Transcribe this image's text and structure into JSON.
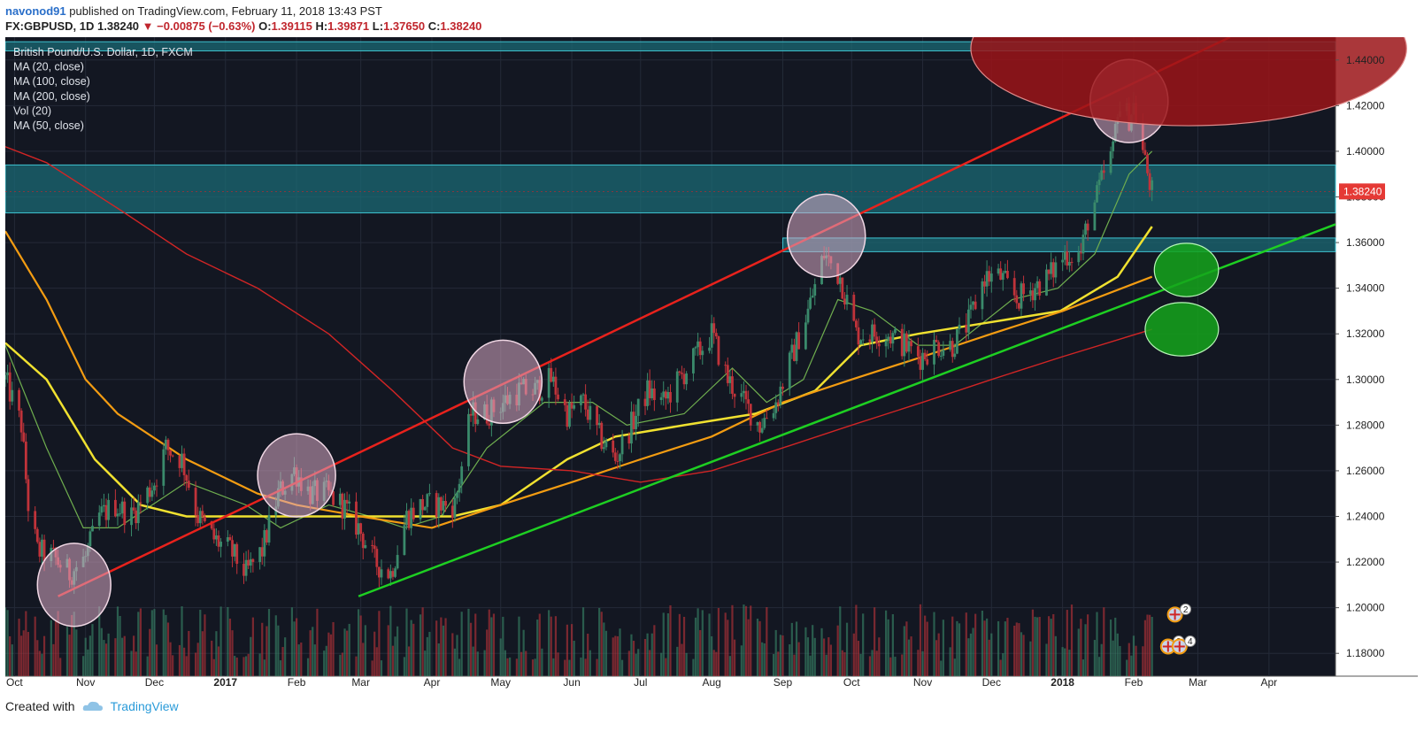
{
  "header": {
    "publisher": "navonod91",
    "published_text": "published on TradingView.com, February 11, 2018 13:43 PST",
    "symbol": "FX:GBPUSD, 1D",
    "last": "1.38240",
    "change": "−0.00875 (−0.63%)",
    "o_label": "O:",
    "o_value": "1.39115",
    "h_label": "H:",
    "h_value": "1.39871",
    "l_label": "L:",
    "l_value": "1.37650",
    "c_label": "C:",
    "c_value": "1.38240"
  },
  "legend": [
    "British Pound/U.S. Dollar, 1D, FXCM",
    "MA (20, close)",
    "MA (100, close)",
    "MA (200, close)",
    "Vol (20)",
    "MA (50, close)"
  ],
  "footer": {
    "created_with": "Created with",
    "brand": "TradingView"
  },
  "colors": {
    "background": "#131722",
    "bull": "#3a8a6b",
    "bear": "#c0333a",
    "ma20": "#6fae4f",
    "ma50": "#f0e130",
    "ma100": "#f39c12",
    "ma200": "#d02525",
    "zone": "#1b6a74",
    "trend_red": "#e8221c",
    "trend_green": "#1ecf22"
  },
  "chart_data": {
    "type": "candlestick",
    "title": "British Pound/U.S. Dollar, 1D, FXCM",
    "ylim": [
      1.17,
      1.45
    ],
    "xlim": [
      "2016-09-27",
      "2018-04-30"
    ],
    "y_ticks": [
      "1.18000",
      "1.20000",
      "1.22000",
      "1.24000",
      "1.26000",
      "1.28000",
      "1.30000",
      "1.32000",
      "1.34000",
      "1.36000",
      "1.38000",
      "1.40000",
      "1.42000",
      "1.44000"
    ],
    "y_tick_values": [
      1.18,
      1.2,
      1.22,
      1.24,
      1.26,
      1.28,
      1.3,
      1.32,
      1.34,
      1.36,
      1.38,
      1.4,
      1.42,
      1.44
    ],
    "x_ticks": [
      {
        "label": "Oct",
        "date": "2016-10-01"
      },
      {
        "label": "Nov",
        "date": "2016-11-01"
      },
      {
        "label": "Dec",
        "date": "2016-12-01"
      },
      {
        "label": "2017",
        "date": "2017-01-01"
      },
      {
        "label": "Feb",
        "date": "2017-02-01"
      },
      {
        "label": "Mar",
        "date": "2017-03-01"
      },
      {
        "label": "Apr",
        "date": "2017-04-01"
      },
      {
        "label": "May",
        "date": "2017-05-01"
      },
      {
        "label": "Jun",
        "date": "2017-06-01"
      },
      {
        "label": "Jul",
        "date": "2017-07-01"
      },
      {
        "label": "Aug",
        "date": "2017-08-01"
      },
      {
        "label": "Sep",
        "date": "2017-09-01"
      },
      {
        "label": "Oct",
        "date": "2017-10-01"
      },
      {
        "label": "Nov",
        "date": "2017-11-01"
      },
      {
        "label": "Dec",
        "date": "2017-12-01"
      },
      {
        "label": "2018",
        "date": "2018-01-01"
      },
      {
        "label": "Feb",
        "date": "2018-02-01"
      },
      {
        "label": "Mar",
        "date": "2018-03-01"
      },
      {
        "label": "Apr",
        "date": "2018-04-01"
      }
    ],
    "last_price": {
      "label": "1.38240",
      "value": 1.3824
    },
    "price_path": [
      [
        "2016-09-27",
        1.3
      ],
      [
        "2016-10-04",
        1.28
      ],
      [
        "2016-10-07",
        1.245
      ],
      [
        "2016-10-11",
        1.225
      ],
      [
        "2016-10-18",
        1.222
      ],
      [
        "2016-10-25",
        1.215
      ],
      [
        "2016-11-01",
        1.222
      ],
      [
        "2016-11-07",
        1.24
      ],
      [
        "2016-11-14",
        1.245
      ],
      [
        "2016-11-21",
        1.24
      ],
      [
        "2016-12-01",
        1.255
      ],
      [
        "2016-12-06",
        1.27
      ],
      [
        "2016-12-13",
        1.265
      ],
      [
        "2016-12-20",
        1.24
      ],
      [
        "2016-12-27",
        1.23
      ],
      [
        "2017-01-03",
        1.225
      ],
      [
        "2017-01-10",
        1.215
      ],
      [
        "2017-01-17",
        1.225
      ],
      [
        "2017-01-24",
        1.25
      ],
      [
        "2017-01-31",
        1.26
      ],
      [
        "2017-02-07",
        1.25
      ],
      [
        "2017-02-14",
        1.25
      ],
      [
        "2017-02-21",
        1.245
      ],
      [
        "2017-02-28",
        1.235
      ],
      [
        "2017-03-07",
        1.22
      ],
      [
        "2017-03-14",
        1.215
      ],
      [
        "2017-03-21",
        1.24
      ],
      [
        "2017-03-28",
        1.245
      ],
      [
        "2017-04-04",
        1.245
      ],
      [
        "2017-04-11",
        1.245
      ],
      [
        "2017-04-18",
        1.285
      ],
      [
        "2017-04-25",
        1.285
      ],
      [
        "2017-05-02",
        1.29
      ],
      [
        "2017-05-09",
        1.295
      ],
      [
        "2017-05-16",
        1.295
      ],
      [
        "2017-05-23",
        1.3
      ],
      [
        "2017-05-30",
        1.285
      ],
      [
        "2017-06-06",
        1.29
      ],
      [
        "2017-06-13",
        1.275
      ],
      [
        "2017-06-20",
        1.265
      ],
      [
        "2017-06-27",
        1.28
      ],
      [
        "2017-07-04",
        1.295
      ],
      [
        "2017-07-11",
        1.29
      ],
      [
        "2017-07-18",
        1.3
      ],
      [
        "2017-07-25",
        1.31
      ],
      [
        "2017-08-01",
        1.32
      ],
      [
        "2017-08-08",
        1.3
      ],
      [
        "2017-08-15",
        1.29
      ],
      [
        "2017-08-22",
        1.28
      ],
      [
        "2017-08-29",
        1.29
      ],
      [
        "2017-09-05",
        1.31
      ],
      [
        "2017-09-12",
        1.33
      ],
      [
        "2017-09-19",
        1.355
      ],
      [
        "2017-09-26",
        1.345
      ],
      [
        "2017-10-03",
        1.32
      ],
      [
        "2017-10-10",
        1.32
      ],
      [
        "2017-10-17",
        1.32
      ],
      [
        "2017-10-24",
        1.315
      ],
      [
        "2017-10-31",
        1.31
      ],
      [
        "2017-11-07",
        1.315
      ],
      [
        "2017-11-14",
        1.315
      ],
      [
        "2017-11-21",
        1.325
      ],
      [
        "2017-11-28",
        1.345
      ],
      [
        "2017-12-05",
        1.345
      ],
      [
        "2017-12-12",
        1.335
      ],
      [
        "2017-12-19",
        1.34
      ],
      [
        "2017-12-26",
        1.345
      ],
      [
        "2018-01-02",
        1.355
      ],
      [
        "2018-01-09",
        1.355
      ],
      [
        "2018-01-12",
        1.37
      ],
      [
        "2018-01-16",
        1.38
      ],
      [
        "2018-01-19",
        1.39
      ],
      [
        "2018-01-23",
        1.4
      ],
      [
        "2018-01-25",
        1.42
      ],
      [
        "2018-01-30",
        1.415
      ],
      [
        "2018-02-01",
        1.42
      ],
      [
        "2018-02-06",
        1.395
      ],
      [
        "2018-02-09",
        1.382
      ]
    ],
    "volume_level": [
      0.12,
      0.95
    ],
    "moving_averages": [
      {
        "name": "MA (20, close)",
        "points": [
          [
            "2016-09-27",
            1.315
          ],
          [
            "2016-10-15",
            1.27
          ],
          [
            "2016-10-31",
            1.235
          ],
          [
            "2016-11-15",
            1.235
          ],
          [
            "2016-12-15",
            1.255
          ],
          [
            "2017-01-10",
            1.245
          ],
          [
            "2017-01-25",
            1.235
          ],
          [
            "2017-02-15",
            1.245
          ],
          [
            "2017-03-05",
            1.24
          ],
          [
            "2017-03-20",
            1.235
          ],
          [
            "2017-04-05",
            1.24
          ],
          [
            "2017-04-25",
            1.27
          ],
          [
            "2017-05-20",
            1.29
          ],
          [
            "2017-06-10",
            1.29
          ],
          [
            "2017-06-25",
            1.28
          ],
          [
            "2017-07-20",
            1.285
          ],
          [
            "2017-08-10",
            1.305
          ],
          [
            "2017-08-25",
            1.29
          ],
          [
            "2017-09-10",
            1.3
          ],
          [
            "2017-09-25",
            1.335
          ],
          [
            "2017-10-10",
            1.33
          ],
          [
            "2017-10-30",
            1.315
          ],
          [
            "2017-11-15",
            1.315
          ],
          [
            "2017-12-10",
            1.335
          ],
          [
            "2017-12-30",
            1.34
          ],
          [
            "2018-01-15",
            1.355
          ],
          [
            "2018-01-30",
            1.39
          ],
          [
            "2018-02-09",
            1.4
          ]
        ]
      },
      {
        "name": "MA (50, close)",
        "points": [
          [
            "2016-09-27",
            1.316
          ],
          [
            "2016-10-15",
            1.3
          ],
          [
            "2016-11-05",
            1.265
          ],
          [
            "2016-11-25",
            1.245
          ],
          [
            "2016-12-15",
            1.24
          ],
          [
            "2017-01-15",
            1.24
          ],
          [
            "2017-02-15",
            1.24
          ],
          [
            "2017-03-15",
            1.24
          ],
          [
            "2017-04-10",
            1.24
          ],
          [
            "2017-05-01",
            1.245
          ],
          [
            "2017-05-30",
            1.265
          ],
          [
            "2017-06-20",
            1.275
          ],
          [
            "2017-07-20",
            1.28
          ],
          [
            "2017-08-20",
            1.285
          ],
          [
            "2017-09-15",
            1.295
          ],
          [
            "2017-10-05",
            1.315
          ],
          [
            "2017-10-30",
            1.32
          ],
          [
            "2017-11-30",
            1.325
          ],
          [
            "2017-12-31",
            1.33
          ],
          [
            "2018-01-25",
            1.345
          ],
          [
            "2018-02-09",
            1.367
          ]
        ]
      },
      {
        "name": "MA (100, close)",
        "points": [
          [
            "2016-09-27",
            1.365
          ],
          [
            "2016-10-15",
            1.335
          ],
          [
            "2016-11-01",
            1.3
          ],
          [
            "2016-11-15",
            1.285
          ],
          [
            "2016-12-15",
            1.265
          ],
          [
            "2017-01-15",
            1.25
          ],
          [
            "2017-02-01",
            1.245
          ],
          [
            "2017-03-01",
            1.24
          ],
          [
            "2017-04-01",
            1.235
          ],
          [
            "2017-05-01",
            1.245
          ],
          [
            "2017-06-01",
            1.255
          ],
          [
            "2017-07-01",
            1.265
          ],
          [
            "2017-08-01",
            1.275
          ],
          [
            "2017-09-01",
            1.29
          ],
          [
            "2017-10-01",
            1.3
          ],
          [
            "2017-11-01",
            1.31
          ],
          [
            "2017-12-01",
            1.32
          ],
          [
            "2018-01-01",
            1.33
          ],
          [
            "2018-02-09",
            1.345
          ]
        ]
      },
      {
        "name": "MA (200, close)",
        "points": [
          [
            "2016-09-27",
            1.402
          ],
          [
            "2016-10-15",
            1.395
          ],
          [
            "2016-11-15",
            1.375
          ],
          [
            "2016-12-15",
            1.355
          ],
          [
            "2017-01-15",
            1.34
          ],
          [
            "2017-02-15",
            1.32
          ],
          [
            "2017-03-15",
            1.295
          ],
          [
            "2017-04-10",
            1.27
          ],
          [
            "2017-05-01",
            1.262
          ],
          [
            "2017-06-01",
            1.26
          ],
          [
            "2017-07-01",
            1.255
          ],
          [
            "2017-08-01",
            1.26
          ],
          [
            "2017-09-01",
            1.27
          ],
          [
            "2017-10-01",
            1.28
          ],
          [
            "2017-11-01",
            1.29
          ],
          [
            "2017-12-01",
            1.3
          ],
          [
            "2018-01-01",
            1.31
          ],
          [
            "2018-02-09",
            1.322
          ]
        ]
      }
    ],
    "trendlines": [
      {
        "color": "red",
        "from": [
          "2016-10-20",
          1.205
        ],
        "to": [
          "2018-03-15",
          1.45
        ]
      },
      {
        "color": "green",
        "from": [
          "2017-02-28",
          1.205
        ],
        "to": [
          "2018-04-30",
          1.368
        ]
      }
    ],
    "zones": [
      {
        "from": [
          "2016-09-27",
          1.394
        ],
        "to": [
          "2018-04-30",
          1.373
        ]
      },
      {
        "from": [
          "2016-09-27",
          1.448
        ],
        "to": [
          "2018-04-30",
          1.444
        ]
      },
      {
        "from": [
          "2017-09-01",
          1.362
        ],
        "to": [
          "2018-04-30",
          1.356
        ]
      }
    ],
    "highlight_ellipses": [
      {
        "center": [
          "2016-10-27",
          1.21
        ],
        "half_width_days": 16,
        "half_height": 0.007
      },
      {
        "center": [
          "2017-02-01",
          1.258
        ],
        "half_width_days": 17,
        "half_height": 0.007
      },
      {
        "center": [
          "2017-05-02",
          1.299
        ],
        "half_width_days": 17,
        "half_height": 0.007
      },
      {
        "center": [
          "2017-09-20",
          1.363
        ],
        "half_width_days": 17,
        "half_height": 0.007
      },
      {
        "center": [
          "2018-01-30",
          1.422
        ],
        "half_width_days": 17,
        "half_height": 0.007
      }
    ],
    "target_ellipses": [
      {
        "center": [
          "2018-02-24",
          1.348
        ],
        "half_width_days": 14,
        "half_height": 0.0045,
        "color": "green"
      },
      {
        "center": [
          "2018-02-22",
          1.322
        ],
        "half_width_days": 16,
        "half_height": 0.0045,
        "color": "green"
      },
      {
        "center": [
          "2018-02-25",
          1.445
        ],
        "half_width_days": 95,
        "half_height": 0.013,
        "color": "red"
      }
    ],
    "markers": [
      {
        "date": "2018-02-19",
        "value": 1.197,
        "label": "2"
      },
      {
        "date": "2018-02-16",
        "value": 1.183,
        "label": "2"
      },
      {
        "date": "2018-02-21",
        "value": 1.183,
        "label": "4"
      }
    ]
  }
}
